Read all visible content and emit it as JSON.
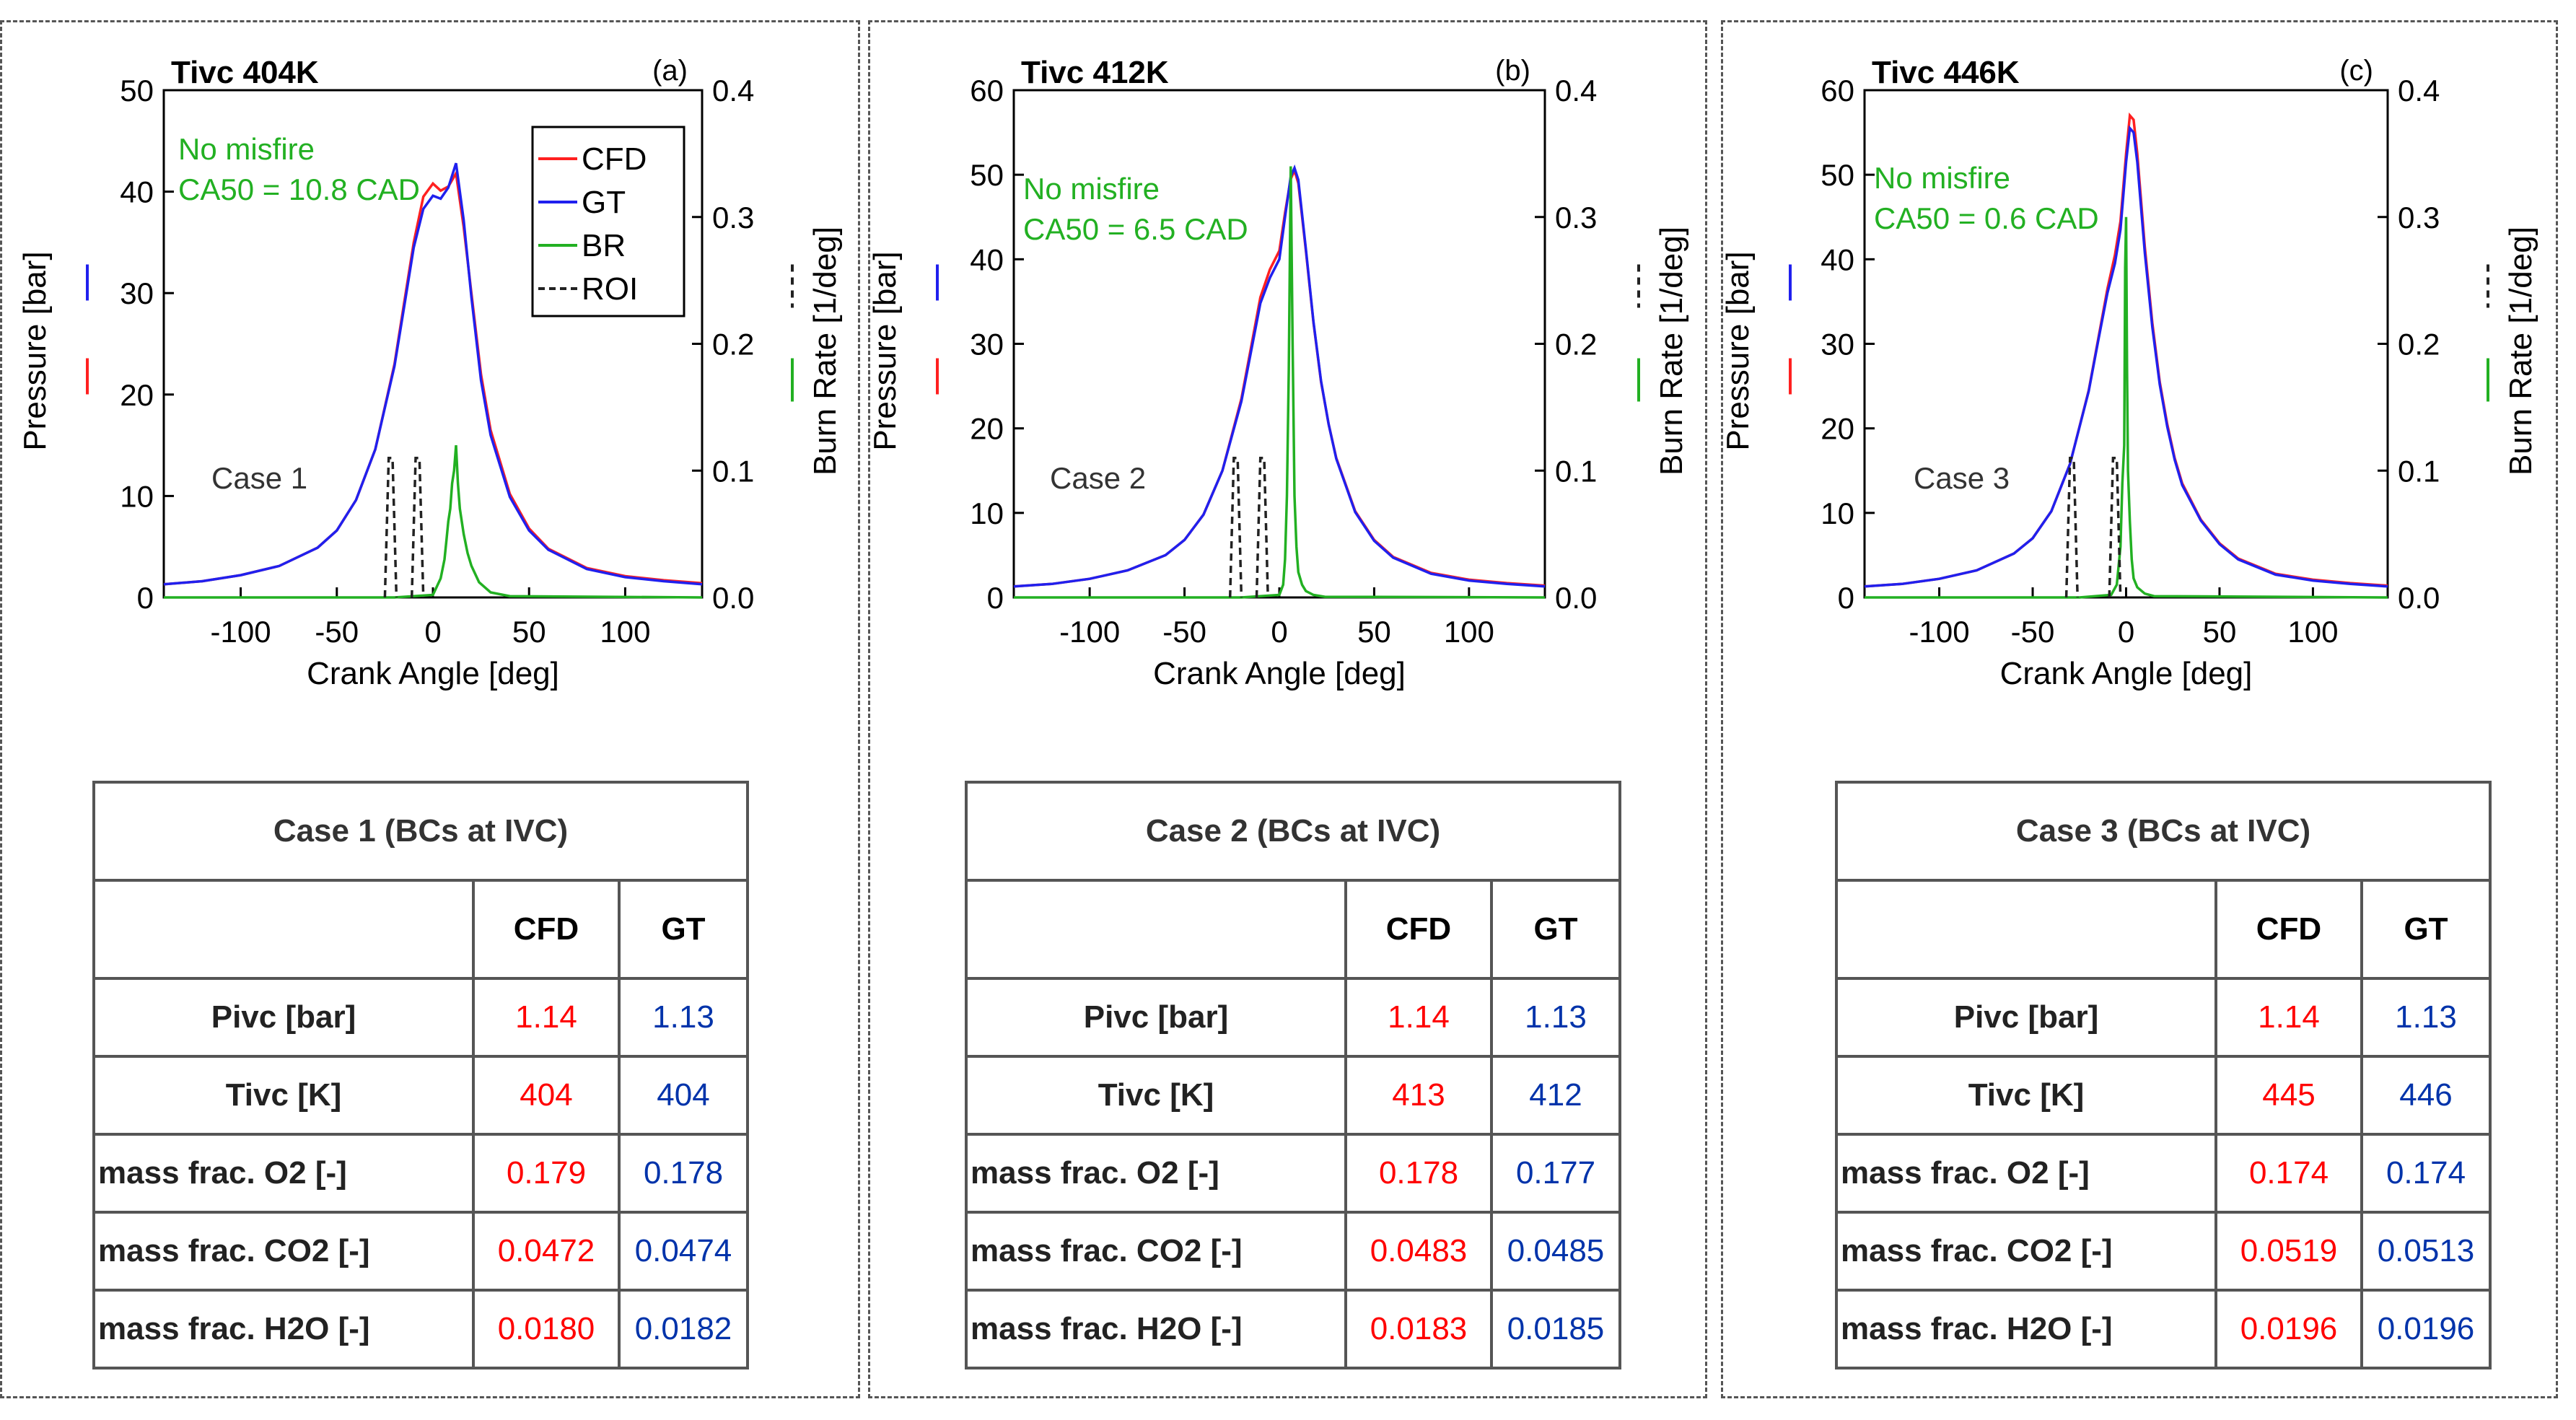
{
  "chart_data": [
    {
      "type": "line",
      "panel_label": "(a)",
      "title": "Tivc 404K",
      "case_label": "Case 1",
      "annotation_lines": [
        "No misfire",
        "CA50 = 10.8 CAD"
      ],
      "xlabel": "Crank Angle [deg]",
      "ylabel": "Pressure [bar]",
      "y2label": "Burn Rate [1/deg]",
      "xlim": [
        -140,
        140
      ],
      "ylim": [
        0,
        50
      ],
      "y2lim": [
        0,
        0.4
      ],
      "xticks": [
        "-100",
        "-50",
        "0",
        "50",
        "100"
      ],
      "yticks": [
        "0",
        "10",
        "20",
        "30",
        "40",
        "50"
      ],
      "y2ticks": [
        "0.0",
        "0.1",
        "0.2",
        "0.3",
        "0.4"
      ],
      "legend": {
        "position": "top-right",
        "entries": [
          "CFD",
          "GT",
          "BR",
          "ROI"
        ]
      },
      "series": [
        {
          "name": "CFD",
          "axis": "left",
          "color": "#ff2020",
          "x": [
            -140,
            -120,
            -100,
            -80,
            -60,
            -50,
            -40,
            -30,
            -20,
            -15,
            -10,
            -5,
            0,
            4,
            8,
            12,
            16,
            20,
            25,
            30,
            40,
            50,
            60,
            80,
            100,
            120,
            140
          ],
          "y": [
            1.3,
            1.6,
            2.2,
            3.1,
            4.9,
            6.6,
            9.6,
            14.6,
            23.0,
            29.0,
            35.0,
            39.5,
            40.8,
            40.1,
            40.5,
            41.8,
            36.5,
            30.0,
            22.0,
            16.5,
            10.2,
            6.8,
            4.8,
            2.9,
            2.1,
            1.7,
            1.4
          ]
        },
        {
          "name": "GT",
          "axis": "left",
          "color": "#2020ee",
          "x": [
            -140,
            -120,
            -100,
            -80,
            -60,
            -50,
            -40,
            -30,
            -20,
            -15,
            -10,
            -5,
            0,
            4,
            8,
            12,
            16,
            20,
            25,
            30,
            40,
            50,
            60,
            80,
            100,
            120,
            140
          ],
          "y": [
            1.3,
            1.6,
            2.2,
            3.1,
            4.9,
            6.6,
            9.6,
            14.6,
            22.8,
            28.6,
            34.5,
            38.3,
            39.6,
            39.3,
            40.4,
            42.8,
            37.2,
            29.6,
            21.4,
            16.0,
            9.9,
            6.6,
            4.7,
            2.8,
            2.0,
            1.6,
            1.3
          ]
        },
        {
          "name": "BR",
          "axis": "right",
          "color": "#22b022",
          "x": [
            -140,
            -20,
            0,
            4,
            6,
            7,
            8,
            9,
            10,
            11,
            12,
            13,
            14,
            16,
            18,
            20,
            24,
            30,
            40,
            140
          ],
          "y": [
            0,
            0,
            0.002,
            0.015,
            0.03,
            0.045,
            0.06,
            0.07,
            0.09,
            0.1,
            0.12,
            0.09,
            0.07,
            0.05,
            0.035,
            0.025,
            0.012,
            0.004,
            0.001,
            0
          ]
        },
        {
          "name": "ROI",
          "axis": "right",
          "color": "#222222",
          "dash": true,
          "segments": [
            [
              [
                -25,
                0
              ],
              [
                -23,
                0.11
              ],
              [
                -21,
                0.11
              ],
              [
                -19,
                0
              ]
            ],
            [
              [
                -11,
                0
              ],
              [
                -9,
                0.11
              ],
              [
                -7,
                0.11
              ],
              [
                -5,
                0
              ]
            ]
          ]
        }
      ],
      "table": {
        "title": "Case 1 (BCs at IVC)",
        "columns": [
          "CFD",
          "GT"
        ],
        "rows": [
          {
            "label": "Pivc [bar]",
            "cfd": "1.14",
            "gt": "1.13"
          },
          {
            "label": "Tivc [K]",
            "cfd": "404",
            "gt": "404"
          },
          {
            "label": "mass frac. O2  [-]",
            "cfd": "0.179",
            "gt": "0.178"
          },
          {
            "label": "mass frac. CO2  [-]",
            "cfd": "0.0472",
            "gt": "0.0474"
          },
          {
            "label": "mass frac. H2O  [-]",
            "cfd": "0.0180",
            "gt": "0.0182"
          }
        ]
      }
    },
    {
      "type": "line",
      "panel_label": "(b)",
      "title": "Tivc 412K",
      "case_label": "Case 2",
      "annotation_lines": [
        "No misfire",
        "CA50 = 6.5 CAD"
      ],
      "xlabel": "Crank Angle [deg]",
      "ylabel": "Pressure [bar]",
      "y2label": "Burn Rate [1/deg]",
      "xlim": [
        -140,
        140
      ],
      "ylim": [
        0,
        60
      ],
      "y2lim": [
        0,
        0.4
      ],
      "xticks": [
        "-100",
        "-50",
        "0",
        "50",
        "100"
      ],
      "yticks": [
        "0",
        "10",
        "20",
        "30",
        "40",
        "50",
        "60"
      ],
      "y2ticks": [
        "0.0",
        "0.1",
        "0.2",
        "0.3",
        "0.4"
      ],
      "series": [
        {
          "name": "CFD",
          "axis": "left",
          "color": "#ff2020",
          "x": [
            -140,
            -120,
            -100,
            -80,
            -60,
            -50,
            -40,
            -30,
            -20,
            -15,
            -10,
            -5,
            0,
            3,
            6,
            8,
            10,
            14,
            18,
            22,
            26,
            30,
            40,
            50,
            60,
            80,
            100,
            120,
            140
          ],
          "y": [
            1.3,
            1.6,
            2.2,
            3.2,
            5.0,
            6.8,
            9.8,
            15.0,
            23.5,
            29.5,
            35.5,
            38.8,
            41.0,
            45.5,
            49.5,
            50.5,
            49.0,
            41.0,
            32.5,
            25.5,
            20.5,
            16.5,
            10.2,
            6.8,
            4.8,
            2.9,
            2.1,
            1.7,
            1.4
          ]
        },
        {
          "name": "GT",
          "axis": "left",
          "color": "#2020ee",
          "x": [
            -140,
            -120,
            -100,
            -80,
            -60,
            -50,
            -40,
            -30,
            -20,
            -15,
            -10,
            -5,
            0,
            3,
            6,
            8,
            10,
            14,
            18,
            22,
            26,
            30,
            40,
            50,
            60,
            80,
            100,
            120,
            140
          ],
          "y": [
            1.3,
            1.6,
            2.2,
            3.2,
            5.0,
            6.8,
            9.8,
            15.0,
            23.2,
            29.0,
            34.8,
            37.8,
            40.0,
            45.0,
            49.8,
            50.8,
            49.4,
            41.2,
            32.6,
            25.6,
            20.5,
            16.4,
            10.1,
            6.7,
            4.7,
            2.8,
            2.0,
            1.6,
            1.3
          ]
        },
        {
          "name": "BR",
          "axis": "right",
          "color": "#22b022",
          "x": [
            -140,
            -20,
            0,
            2,
            3,
            4,
            5,
            6,
            7,
            8,
            9,
            10,
            12,
            14,
            18,
            24,
            140
          ],
          "y": [
            0,
            0,
            0.002,
            0.01,
            0.03,
            0.08,
            0.18,
            0.34,
            0.2,
            0.08,
            0.04,
            0.02,
            0.01,
            0.005,
            0.002,
            0.0005,
            0
          ]
        },
        {
          "name": "ROI",
          "axis": "right",
          "color": "#222222",
          "dash": true,
          "segments": [
            [
              [
                -26,
                0
              ],
              [
                -24,
                0.11
              ],
              [
                -22,
                0.11
              ],
              [
                -20,
                0
              ]
            ],
            [
              [
                -12,
                0
              ],
              [
                -10,
                0.11
              ],
              [
                -8,
                0.11
              ],
              [
                -6,
                0
              ]
            ]
          ]
        }
      ],
      "table": {
        "title": "Case 2 (BCs at IVC)",
        "columns": [
          "CFD",
          "GT"
        ],
        "rows": [
          {
            "label": "Pivc [bar]",
            "cfd": "1.14",
            "gt": "1.13"
          },
          {
            "label": "Tivc [K]",
            "cfd": "413",
            "gt": "412"
          },
          {
            "label": "mass frac. O2  [-]",
            "cfd": "0.178",
            "gt": "0.177"
          },
          {
            "label": "mass frac. CO2  [-]",
            "cfd": "0.0483",
            "gt": "0.0485"
          },
          {
            "label": "mass frac. H2O  [-]",
            "cfd": "0.0183",
            "gt": "0.0185"
          }
        ]
      }
    },
    {
      "type": "line",
      "panel_label": "(c)",
      "title": "Tivc 446K",
      "case_label": "Case 3",
      "annotation_lines": [
        "No misfire",
        "CA50 = 0.6 CAD"
      ],
      "xlabel": "Crank Angle [deg]",
      "ylabel": "Pressure [bar]",
      "y2label": "Burn Rate [1/deg]",
      "xlim": [
        -140,
        140
      ],
      "ylim": [
        0,
        60
      ],
      "y2lim": [
        0,
        0.4
      ],
      "xticks": [
        "-100",
        "-50",
        "0",
        "50",
        "100"
      ],
      "yticks": [
        "0",
        "10",
        "20",
        "30",
        "40",
        "50",
        "60"
      ],
      "y2ticks": [
        "0.0",
        "0.1",
        "0.2",
        "0.3",
        "0.4"
      ],
      "series": [
        {
          "name": "CFD",
          "axis": "left",
          "color": "#ff2020",
          "x": [
            -140,
            -120,
            -100,
            -80,
            -60,
            -50,
            -40,
            -30,
            -20,
            -15,
            -10,
            -6,
            -3,
            0,
            2,
            4,
            6,
            10,
            14,
            18,
            22,
            26,
            30,
            40,
            50,
            60,
            80,
            100,
            120,
            140
          ],
          "y": [
            1.3,
            1.6,
            2.2,
            3.2,
            5.2,
            7.0,
            10.2,
            15.8,
            24.5,
            30.5,
            36.5,
            40.5,
            44.5,
            52.5,
            57.0,
            56.5,
            52.5,
            41.5,
            32.5,
            25.5,
            20.5,
            16.5,
            13.5,
            9.2,
            6.4,
            4.6,
            2.8,
            2.1,
            1.7,
            1.4
          ]
        },
        {
          "name": "GT",
          "axis": "left",
          "color": "#2020ee",
          "x": [
            -140,
            -120,
            -100,
            -80,
            -60,
            -50,
            -40,
            -30,
            -20,
            -15,
            -10,
            -6,
            -3,
            0,
            2,
            4,
            6,
            10,
            14,
            18,
            22,
            26,
            30,
            40,
            50,
            60,
            80,
            100,
            120,
            140
          ],
          "y": [
            1.3,
            1.6,
            2.2,
            3.2,
            5.2,
            7.0,
            10.2,
            15.8,
            24.4,
            30.3,
            36.0,
            39.5,
            43.5,
            51.5,
            55.5,
            55.0,
            51.5,
            40.8,
            32.0,
            25.2,
            20.2,
            16.3,
            13.3,
            9.1,
            6.3,
            4.5,
            2.7,
            2.0,
            1.6,
            1.3
          ]
        },
        {
          "name": "BR",
          "axis": "right",
          "color": "#22b022",
          "x": [
            -140,
            -25,
            -8,
            -5,
            -3,
            -2,
            -1,
            -0.5,
            0,
            0.5,
            1,
            2,
            3,
            4,
            6,
            10,
            15,
            140
          ],
          "y": [
            0,
            0,
            0.002,
            0.01,
            0.04,
            0.09,
            0.12,
            0.26,
            0.3,
            0.18,
            0.1,
            0.06,
            0.03,
            0.015,
            0.008,
            0.003,
            0.001,
            0
          ]
        },
        {
          "name": "ROI",
          "axis": "right",
          "color": "#222222",
          "dash": true,
          "segments": [
            [
              [
                -32,
                0
              ],
              [
                -30,
                0.11
              ],
              [
                -28,
                0.11
              ],
              [
                -26,
                0
              ]
            ],
            [
              [
                -9,
                0
              ],
              [
                -7,
                0.11
              ],
              [
                -5,
                0.11
              ],
              [
                -3,
                0
              ]
            ]
          ]
        }
      ],
      "table": {
        "title": "Case 3 (BCs at IVC)",
        "columns": [
          "CFD",
          "GT"
        ],
        "rows": [
          {
            "label": "Pivc [bar]",
            "cfd": "1.14",
            "gt": "1.13"
          },
          {
            "label": "Tivc [K]",
            "cfd": "445",
            "gt": "446"
          },
          {
            "label": "mass frac. O2  [-]",
            "cfd": "0.174",
            "gt": "0.174"
          },
          {
            "label": "mass frac. CO2  [-]",
            "cfd": "0.0519",
            "gt": "0.0513"
          },
          {
            "label": "mass frac. H2O  [-]",
            "cfd": "0.0196",
            "gt": "0.0196"
          }
        ]
      }
    }
  ]
}
